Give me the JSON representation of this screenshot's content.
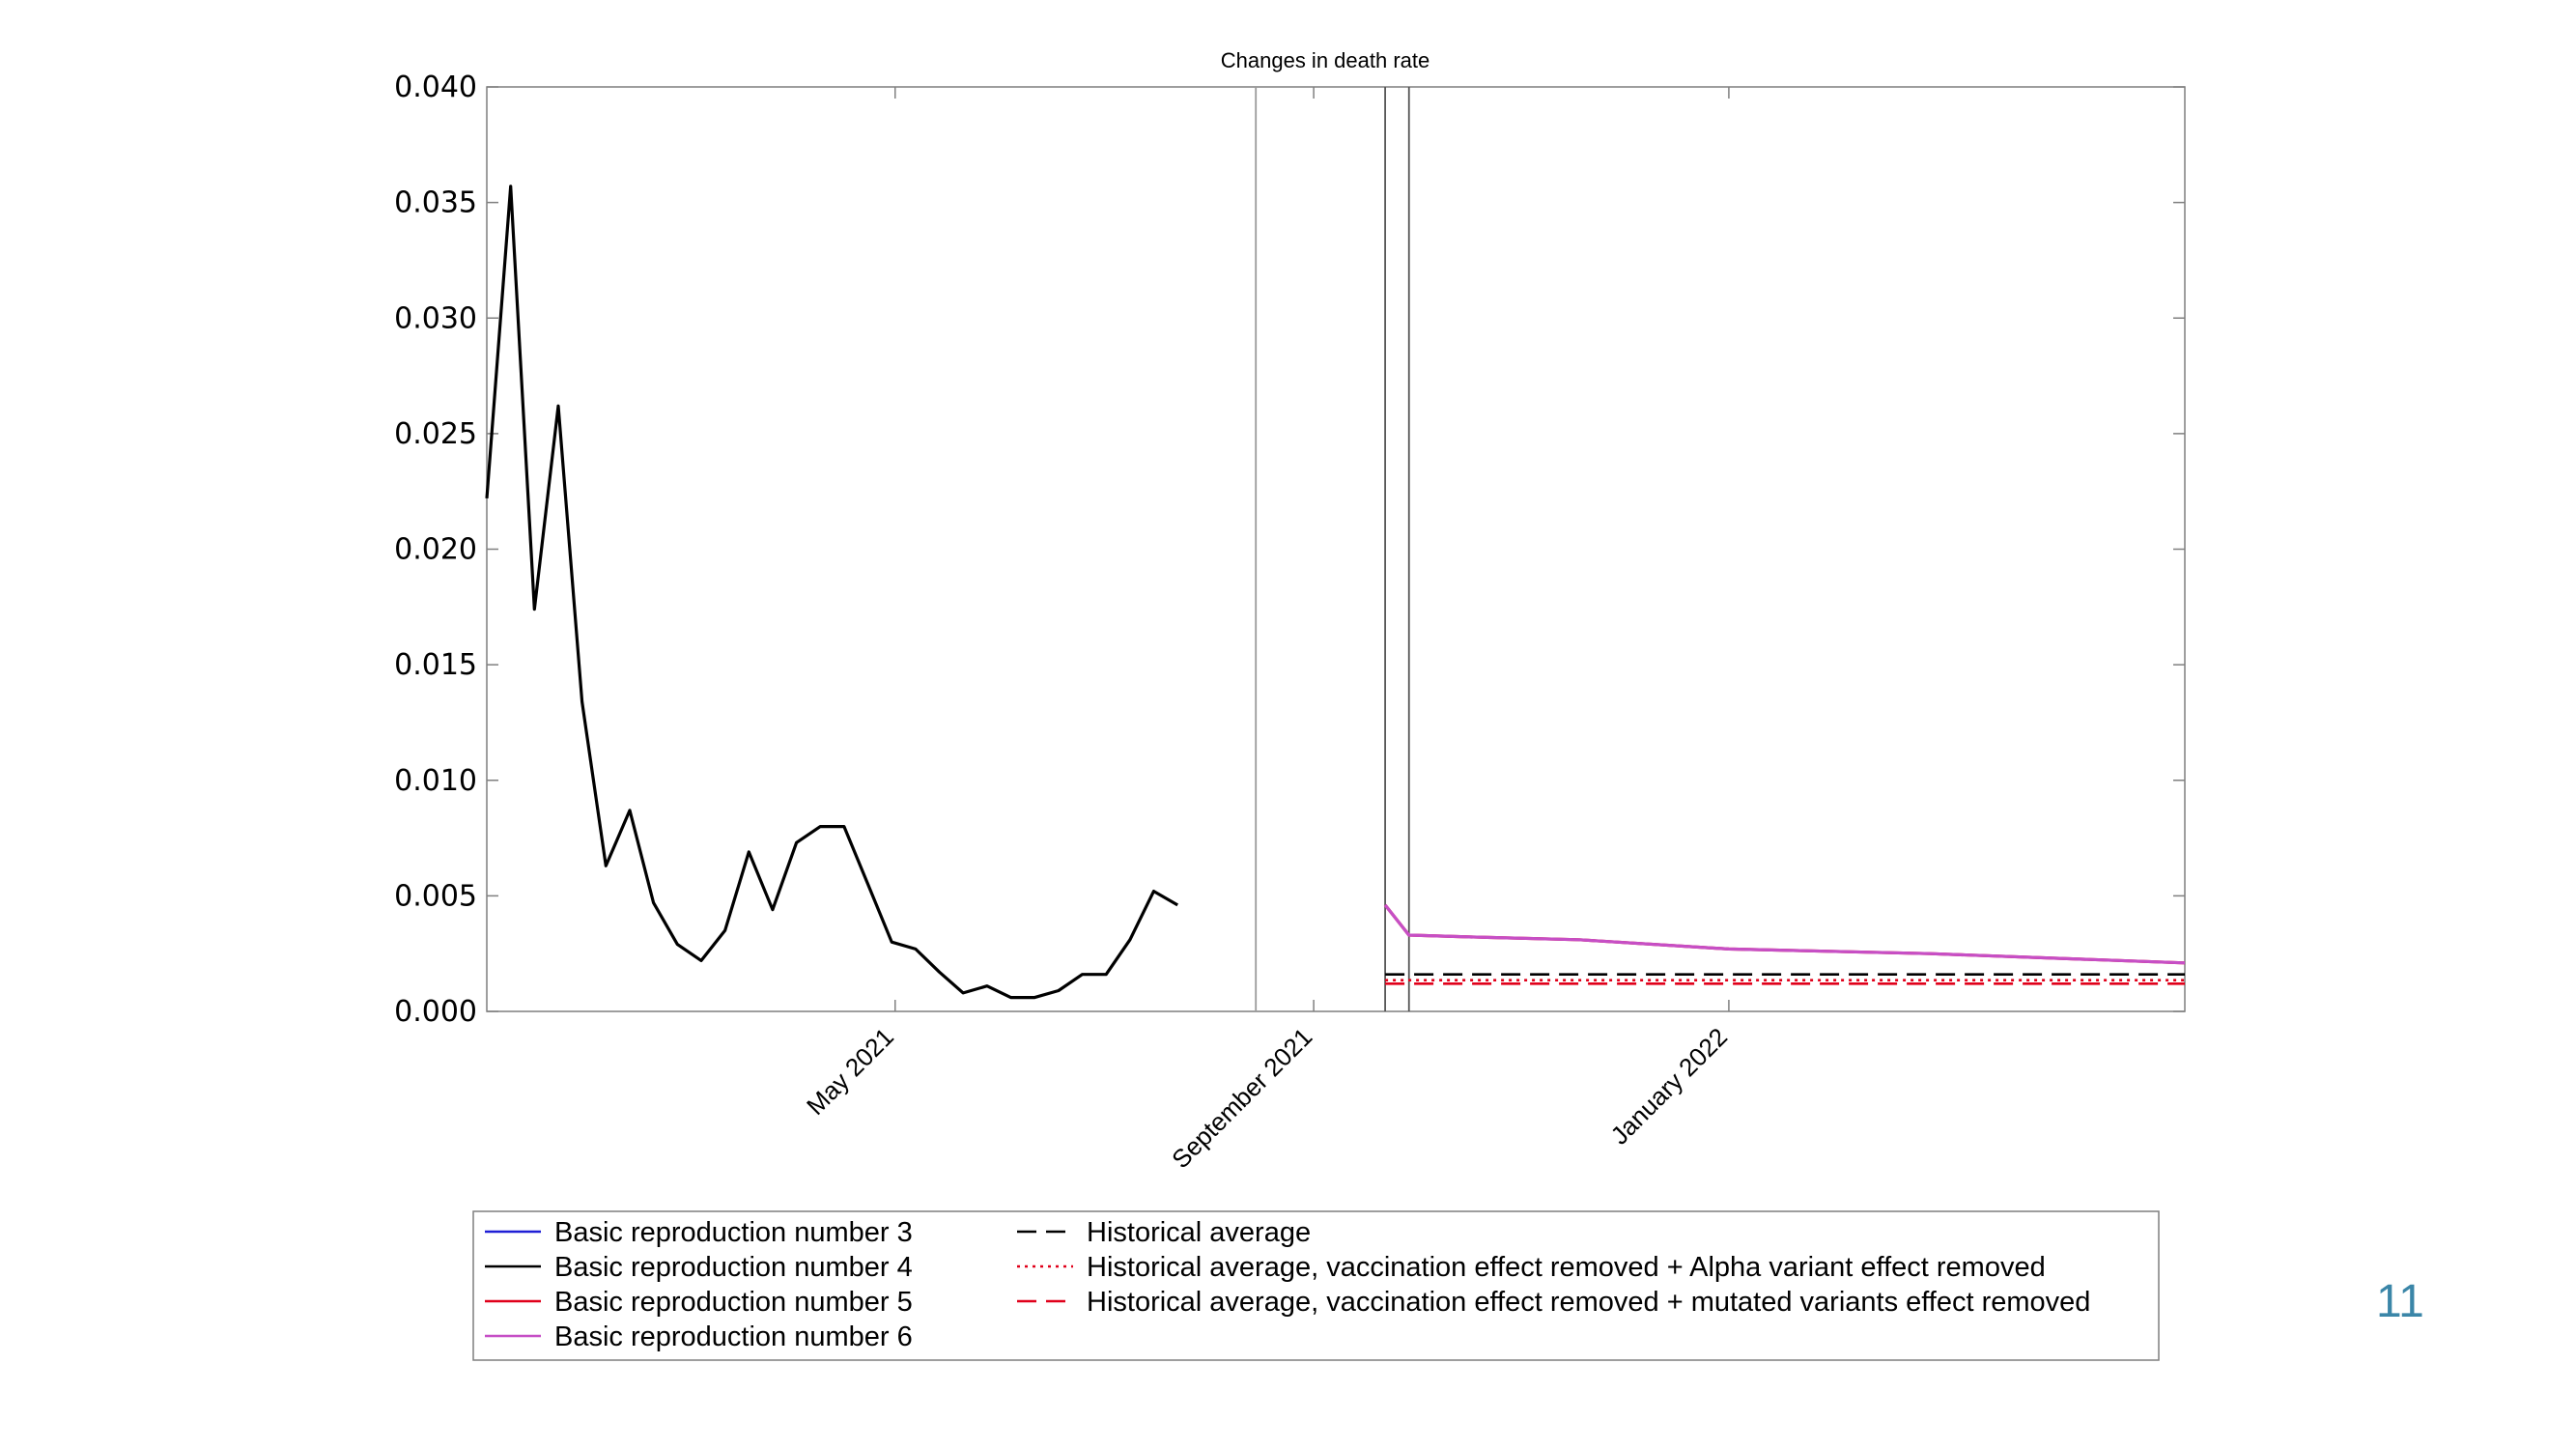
{
  "slide_number": "11",
  "chart_data": {
    "type": "line",
    "title": "Changes in death rate",
    "xlabel": "",
    "ylabel": "",
    "x_axis": {
      "type": "date",
      "range": [
        "2021-01-01",
        "2022-05-15"
      ],
      "tick_labels": [
        "May 2021",
        "September 2021",
        "January 2022"
      ],
      "tick_dates": [
        "2021-05-01",
        "2021-09-01",
        "2022-01-01"
      ]
    },
    "y_axis": {
      "range": [
        0,
        0.04
      ],
      "tick_values": [
        0,
        0.005,
        0.01,
        0.015,
        0.02,
        0.025,
        0.03,
        0.035,
        0.04
      ],
      "tick_labels": [
        "0.000",
        "0.005",
        "0.010",
        "0.015",
        "0.020",
        "0.025",
        "0.030",
        "0.035",
        "0.040"
      ]
    },
    "grid": false,
    "legend_placement": "bottom",
    "vertical_lines": [
      "2021-08-15",
      "2021-09-22",
      "2021-09-29"
    ],
    "series": [
      {
        "name": "Basic reproduction number 3",
        "color": "#1f1fd6",
        "style": "solid",
        "points": []
      },
      {
        "name": "Basic reproduction number 4",
        "color": "#000000",
        "style": "solid",
        "points": [
          [
            "2021-01-01",
            0.0222
          ],
          [
            "2021-01-08",
            0.0357
          ],
          [
            "2021-01-15",
            0.0174
          ],
          [
            "2021-01-22",
            0.0262
          ],
          [
            "2021-01-29",
            0.0134
          ],
          [
            "2021-02-05",
            0.0063
          ],
          [
            "2021-02-12",
            0.0087
          ],
          [
            "2021-02-19",
            0.0047
          ],
          [
            "2021-02-26",
            0.0029
          ],
          [
            "2021-03-05",
            0.0022
          ],
          [
            "2021-03-12",
            0.0035
          ],
          [
            "2021-03-19",
            0.0069
          ],
          [
            "2021-03-26",
            0.0044
          ],
          [
            "2021-04-02",
            0.0073
          ],
          [
            "2021-04-09",
            0.008
          ],
          [
            "2021-04-16",
            0.008
          ],
          [
            "2021-04-23",
            0.0055
          ],
          [
            "2021-04-30",
            0.003
          ],
          [
            "2021-05-07",
            0.0027
          ],
          [
            "2021-05-14",
            0.0017
          ],
          [
            "2021-05-21",
            0.0008
          ],
          [
            "2021-05-28",
            0.0011
          ],
          [
            "2021-06-04",
            0.0006
          ],
          [
            "2021-06-11",
            0.0006
          ],
          [
            "2021-06-18",
            0.0009
          ],
          [
            "2021-06-25",
            0.0016
          ],
          [
            "2021-07-02",
            0.0016
          ],
          [
            "2021-07-09",
            0.0031
          ],
          [
            "2021-07-16",
            0.0052
          ],
          [
            "2021-07-23",
            0.0046
          ]
        ]
      },
      {
        "name": "Basic reproduction number 5",
        "color": "#e0001a",
        "style": "solid",
        "points": [
          [
            "2021-09-22",
            0.0046
          ],
          [
            "2021-09-29",
            0.0033
          ],
          [
            "2021-10-22",
            0.0032
          ],
          [
            "2021-11-18",
            0.0031
          ],
          [
            "2022-01-01",
            0.0027
          ],
          [
            "2022-03-01",
            0.0025
          ],
          [
            "2022-05-15",
            0.0021
          ]
        ]
      },
      {
        "name": "Basic reproduction number 6",
        "color": "#c64fc6",
        "style": "solid",
        "points": [
          [
            "2021-09-22",
            0.0046
          ],
          [
            "2021-09-29",
            0.0033
          ],
          [
            "2021-10-22",
            0.0032
          ],
          [
            "2021-11-18",
            0.0031
          ],
          [
            "2022-01-01",
            0.0027
          ],
          [
            "2022-03-01",
            0.0025
          ],
          [
            "2022-05-15",
            0.0021
          ]
        ]
      },
      {
        "name": "Historical average",
        "color": "#000000",
        "style": "dashed",
        "points": [
          [
            "2021-09-22",
            0.0016
          ],
          [
            "2022-05-15",
            0.0016
          ]
        ]
      },
      {
        "name": "Historical average, vaccination effect removed + Alpha variant effect removed",
        "color": "#e0001a",
        "style": "dotted",
        "points": [
          [
            "2021-09-22",
            0.00135
          ],
          [
            "2022-05-15",
            0.00135
          ]
        ]
      },
      {
        "name": "Historical average, vaccination effect removed + mutated variants effect removed",
        "color": "#e0001a",
        "style": "dashed",
        "points": [
          [
            "2021-09-22",
            0.0012
          ],
          [
            "2022-05-15",
            0.0012
          ]
        ]
      }
    ]
  }
}
